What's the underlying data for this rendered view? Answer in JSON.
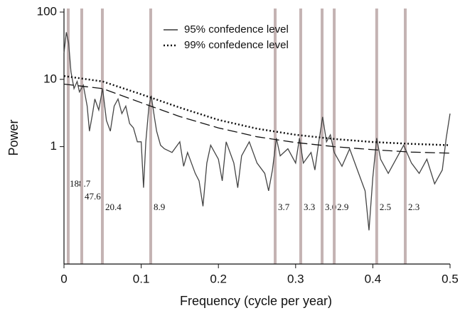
{
  "chart_data": {
    "type": "line",
    "x_label": "Frequency (cycle per year)",
    "y_label": "Power",
    "xlim": [
      0,
      0.5
    ],
    "xticks": [
      0,
      0.1,
      0.2,
      0.3,
      0.4,
      0.5
    ],
    "ylim": [
      0.018,
      100
    ],
    "yticks": [
      1,
      10,
      100
    ],
    "log_y": true,
    "legend": "top",
    "band_color": "#c4b3b3",
    "annotations": [
      {
        "x": 0.0055,
        "label": "188.7"
      },
      {
        "x": 0.023,
        "label": "47.6"
      },
      {
        "x": 0.0497,
        "label": "20.4"
      },
      {
        "x": 0.1123,
        "label": "8.9"
      },
      {
        "x": 0.2735,
        "label": "3.7"
      },
      {
        "x": 0.3066,
        "label": "3.3"
      },
      {
        "x": 0.3343,
        "label": "3.0"
      },
      {
        "x": 0.35,
        "label": "2.9"
      },
      {
        "x": 0.405,
        "label": "2.5"
      },
      {
        "x": 0.442,
        "label": "2.3"
      }
    ],
    "series": [
      {
        "color": "#444444",
        "dash": "solid",
        "x": [
          0,
          0.003,
          0.006,
          0.009,
          0.013,
          0.017,
          0.02,
          0.025,
          0.03,
          0.033,
          0.037,
          0.04,
          0.045,
          0.05,
          0.055,
          0.06,
          0.065,
          0.07,
          0.075,
          0.08,
          0.085,
          0.09,
          0.095,
          0.1,
          0.103,
          0.106,
          0.11,
          0.113,
          0.117,
          0.12,
          0.125,
          0.13,
          0.14,
          0.15,
          0.155,
          0.16,
          0.17,
          0.175,
          0.18,
          0.185,
          0.19,
          0.2,
          0.205,
          0.21,
          0.22,
          0.225,
          0.23,
          0.24,
          0.25,
          0.26,
          0.265,
          0.27,
          0.275,
          0.28,
          0.29,
          0.3,
          0.305,
          0.31,
          0.32,
          0.325,
          0.33,
          0.335,
          0.34,
          0.345,
          0.35,
          0.36,
          0.37,
          0.38,
          0.39,
          0.395,
          0.4,
          0.405,
          0.41,
          0.42,
          0.43,
          0.44,
          0.45,
          0.46,
          0.47,
          0.48,
          0.49,
          0.495,
          0.5
        ],
        "values": [
          24.5,
          50,
          35,
          13,
          7.3,
          9.3,
          6.5,
          8.2,
          4.0,
          1.7,
          3.1,
          5.1,
          3.5,
          7.3,
          2.45,
          1.7,
          4.0,
          5.1,
          3.1,
          4.0,
          2.2,
          1.9,
          1.18,
          1.18,
          0.245,
          1.18,
          4.0,
          5.7,
          2.77,
          1.7,
          1.05,
          0.93,
          0.82,
          1.18,
          0.51,
          0.82,
          0.4,
          0.31,
          0.13,
          0.57,
          1.05,
          0.65,
          0.31,
          1.18,
          0.57,
          0.245,
          0.73,
          1.18,
          0.57,
          0.4,
          0.22,
          0.45,
          1.34,
          0.73,
          0.93,
          0.57,
          1.34,
          0.57,
          0.82,
          0.45,
          1.18,
          2.77,
          1.18,
          1.5,
          0.82,
          0.51,
          0.93,
          0.45,
          0.22,
          0.057,
          0.35,
          1.34,
          0.65,
          0.4,
          0.65,
          1.05,
          0.57,
          0.4,
          0.65,
          0.28,
          0.45,
          1.34,
          3.1
        ]
      },
      {
        "name": "95% confedence level",
        "color": "#111111",
        "dash": "dashed",
        "legend_dash": "solid",
        "x": [
          0,
          0.05,
          0.1,
          0.15,
          0.2,
          0.25,
          0.3,
          0.35,
          0.4,
          0.45,
          0.5
        ],
        "values": [
          8.5,
          7.3,
          4.5,
          2.8,
          1.9,
          1.4,
          1.15,
          1.0,
          0.9,
          0.83,
          0.8
        ]
      },
      {
        "name": "99% confedence level",
        "color": "#111111",
        "dash": "dotted",
        "legend_dash": "dotted",
        "x": [
          0,
          0.05,
          0.1,
          0.15,
          0.2,
          0.25,
          0.3,
          0.35,
          0.4,
          0.45,
          0.5
        ],
        "values": [
          11.2,
          9.3,
          6.0,
          3.8,
          2.5,
          1.85,
          1.5,
          1.3,
          1.17,
          1.1,
          1.05
        ]
      }
    ]
  }
}
